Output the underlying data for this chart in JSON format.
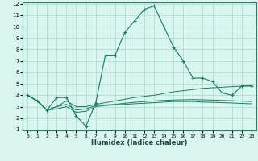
{
  "xlabel": "Humidex (Indice chaleur)",
  "x_values": [
    0,
    1,
    2,
    3,
    4,
    5,
    6,
    7,
    8,
    9,
    10,
    11,
    12,
    13,
    14,
    15,
    16,
    17,
    18,
    19,
    20,
    21,
    22,
    23
  ],
  "main_curve": [
    4.0,
    3.5,
    2.7,
    3.8,
    3.8,
    2.2,
    1.3,
    3.3,
    7.5,
    7.5,
    9.5,
    10.5,
    11.5,
    11.8,
    10.0,
    8.2,
    7.0,
    5.5,
    5.5,
    5.2,
    4.2,
    4.0,
    4.8,
    4.8
  ],
  "line2": [
    4.0,
    3.5,
    2.7,
    3.0,
    3.5,
    3.0,
    3.0,
    3.2,
    3.35,
    3.5,
    3.65,
    3.8,
    3.9,
    4.0,
    4.15,
    4.3,
    4.4,
    4.5,
    4.6,
    4.65,
    4.7,
    4.75,
    4.8,
    4.85
  ],
  "line3": [
    4.0,
    3.5,
    2.7,
    2.8,
    3.0,
    2.5,
    2.6,
    3.0,
    3.1,
    3.15,
    3.2,
    3.25,
    3.3,
    3.35,
    3.4,
    3.45,
    3.45,
    3.45,
    3.4,
    3.38,
    3.35,
    3.32,
    3.28,
    3.25
  ],
  "line4": [
    4.0,
    3.5,
    2.7,
    3.0,
    3.2,
    2.7,
    2.8,
    3.1,
    3.15,
    3.2,
    3.3,
    3.38,
    3.45,
    3.5,
    3.55,
    3.58,
    3.6,
    3.62,
    3.6,
    3.58,
    3.55,
    3.52,
    3.48,
    3.45
  ],
  "line_color": "#1a7a5e",
  "bg_color": "#d8f5f0",
  "grid_color": "#b0ddd5",
  "ylim": [
    1,
    12
  ],
  "xlim": [
    -0.5,
    23.5
  ],
  "yticks": [
    1,
    2,
    3,
    4,
    5,
    6,
    7,
    8,
    9,
    10,
    11,
    12
  ],
  "xticks": [
    0,
    1,
    2,
    3,
    4,
    5,
    6,
    7,
    8,
    9,
    10,
    11,
    12,
    13,
    14,
    15,
    16,
    17,
    18,
    19,
    20,
    21,
    22,
    23
  ]
}
